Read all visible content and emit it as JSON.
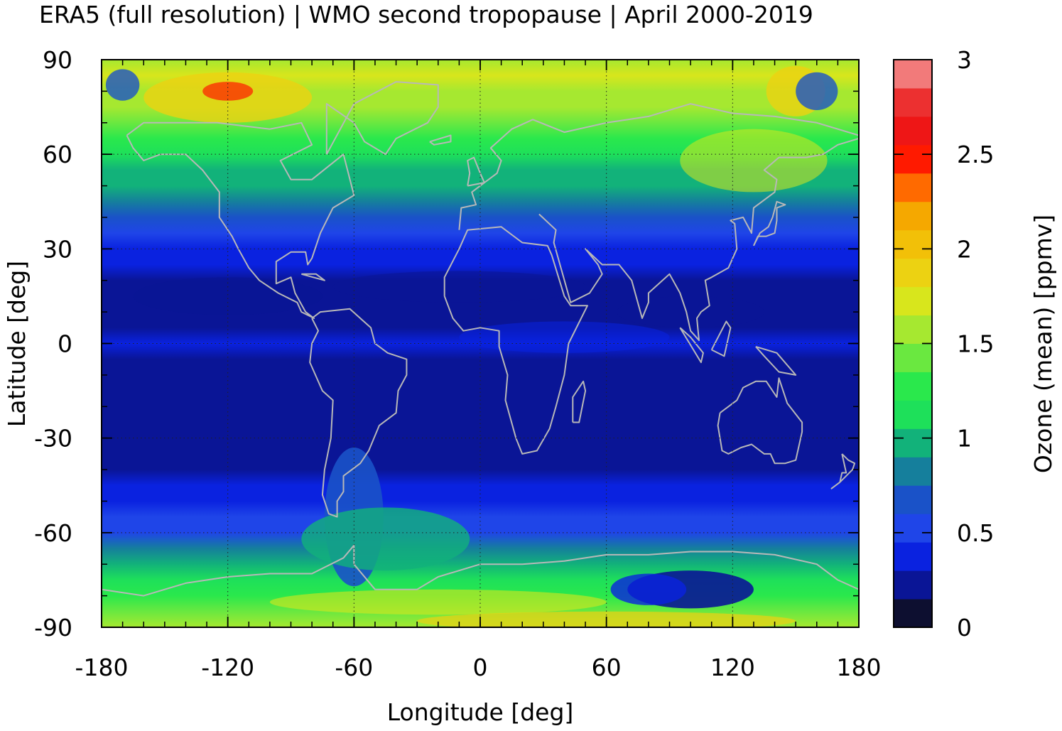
{
  "chart_data": {
    "type": "heatmap",
    "title": "ERA5 (full resolution) | WMO second tropopause | April 2000-2019",
    "xlabel": "Longitude [deg]",
    "ylabel": "Latitude [deg]",
    "xlim": [
      -180,
      180
    ],
    "ylim": [
      -90,
      90
    ],
    "x_ticks": [
      -180,
      -120,
      -60,
      0,
      60,
      120,
      180
    ],
    "y_ticks": [
      90,
      60,
      30,
      0,
      -30,
      -60,
      -90
    ],
    "x_tick_labels": [
      "-180",
      "-120",
      "-60",
      "0",
      "60",
      "120",
      "180"
    ],
    "y_tick_labels": [
      "90",
      "60",
      "30",
      "0",
      "-30",
      "-60",
      "-90"
    ],
    "grid": true,
    "colorbar": {
      "label": "Ozone (mean) [ppmv]",
      "range": [
        0,
        3
      ],
      "ticks": [
        0,
        0.5,
        1,
        1.5,
        2,
        2.5,
        3
      ],
      "tick_labels": [
        "0",
        "0.5",
        "1",
        "1.5",
        "2",
        "2.5",
        "3"
      ],
      "levels": [
        0,
        0.15,
        0.3,
        0.45,
        0.6,
        0.75,
        0.9,
        1.05,
        1.2,
        1.35,
        1.5,
        1.65,
        1.8,
        1.95,
        2.1,
        2.25,
        2.4,
        2.55,
        2.7,
        2.85,
        3
      ],
      "colors": [
        "#0d0f30",
        "#0a1596",
        "#0a22e0",
        "#1f45e8",
        "#1a52c8",
        "#157f9c",
        "#12b27a",
        "#1ee05a",
        "#2ae84c",
        "#6ae840",
        "#a6e830",
        "#d8e61c",
        "#ecd212",
        "#f2c008",
        "#f5a800",
        "#ff6a00",
        "#ff1a00",
        "#ee1616",
        "#ec3030",
        "#f27a7a",
        "#fcd0d0"
      ]
    },
    "zonal_mean_profile": {
      "latitude": [
        -90,
        -85,
        -80,
        -75,
        -70,
        -65,
        -60,
        -55,
        -50,
        -45,
        -40,
        -35,
        -30,
        -25,
        -20,
        -15,
        -10,
        -5,
        0,
        5,
        10,
        15,
        20,
        25,
        30,
        35,
        40,
        45,
        50,
        55,
        60,
        65,
        70,
        75,
        80,
        85,
        90
      ],
      "ozone_ppmv": [
        1.5,
        1.4,
        1.2,
        1.05,
        0.9,
        0.75,
        0.55,
        0.45,
        0.4,
        0.33,
        0.25,
        0.2,
        0.17,
        0.15,
        0.15,
        0.17,
        0.22,
        0.28,
        0.32,
        0.28,
        0.22,
        0.18,
        0.2,
        0.3,
        0.38,
        0.48,
        0.6,
        0.75,
        0.9,
        1.0,
        1.15,
        1.25,
        1.4,
        1.5,
        1.6,
        1.65,
        1.5
      ]
    },
    "overlay": "coastlines"
  }
}
